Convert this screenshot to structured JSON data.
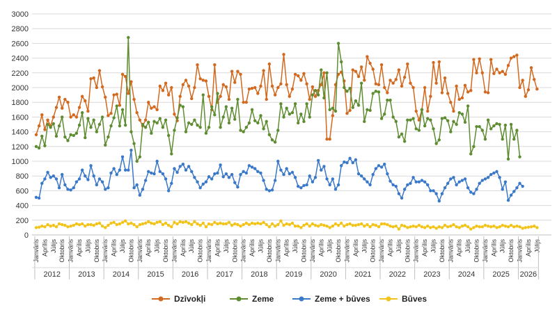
{
  "chart_data": {
    "type": "line",
    "ylim": [
      0,
      3000
    ],
    "y_ticks": [
      0,
      200,
      400,
      600,
      800,
      1000,
      1200,
      1400,
      1600,
      1800,
      2000,
      2200,
      2400,
      2600,
      2800,
      3000
    ],
    "grid": "horizontal",
    "legend_position": "bottom",
    "x_start": "2012-01",
    "month_tick_labels": [
      "Janvāris",
      "Aprīlis",
      "Jūlijs",
      "Oktobris"
    ],
    "years": [
      "2012",
      "2013",
      "2014",
      "2015",
      "2016",
      "2017",
      "2018",
      "2019",
      "2020",
      "2021",
      "2022",
      "2023",
      "2024",
      "2025",
      "2026"
    ],
    "series": [
      {
        "name": "Dzīvokļi",
        "color": "#d2691e",
        "values": [
          1360,
          1480,
          1630,
          1430,
          1560,
          1480,
          1600,
          1730,
          1870,
          1720,
          1840,
          1800,
          1600,
          1630,
          1600,
          1730,
          1880,
          1820,
          1680,
          2120,
          2130,
          2000,
          2230,
          2010,
          1870,
          1620,
          1650,
          1900,
          1910,
          1760,
          2180,
          2150,
          1920,
          2080,
          1840,
          1660,
          1560,
          1480,
          1560,
          1800,
          1720,
          1740,
          1700,
          2020,
          1960,
          2060,
          1900,
          2000,
          1640,
          1550,
          1880,
          2040,
          2100,
          2020,
          1850,
          2000,
          2310,
          2120,
          2100,
          2090,
          1880,
          1700,
          2310,
          1800,
          1880,
          2040,
          2010,
          1840,
          2220,
          2070,
          2220,
          2180,
          1800,
          1800,
          1980,
          1990,
          2000,
          1920,
          2020,
          2230,
          1840,
          2320,
          2020,
          1900,
          2000,
          2050,
          2450,
          2040,
          1880,
          1980,
          2180,
          2160,
          2100,
          2190,
          2050,
          1840,
          2010,
          1880,
          1960,
          2040,
          2200,
          1300,
          1300,
          1620,
          2040,
          2180,
          2210,
          2090,
          1650,
          1690,
          2240,
          2220,
          2150,
          2280,
          2100,
          2420,
          2330,
          2250,
          2050,
          2040,
          2310,
          2000,
          1930,
          2100,
          2060,
          2110,
          2240,
          2020,
          2140,
          2320,
          2060,
          2000,
          1680,
          1560,
          1700,
          2000,
          1680,
          1880,
          2340,
          2060,
          2350,
          1930,
          2130,
          1920,
          1800,
          1680,
          2020,
          1840,
          1860,
          2030,
          1940,
          1960,
          2380,
          2200,
          2390,
          2200,
          1940,
          1930,
          2380,
          2190,
          2250,
          2200,
          2220,
          2180,
          2300,
          2400,
          2420,
          2440,
          2000,
          2100,
          1880,
          1970,
          2270,
          2110,
          1980
        ]
      },
      {
        "name": "Zeme",
        "color": "#5e8c31",
        "values": [
          1200,
          1180,
          1340,
          1210,
          1500,
          1460,
          1510,
          1340,
          1480,
          1600,
          1330,
          1280,
          1360,
          1350,
          1380,
          1490,
          1660,
          1320,
          1580,
          1460,
          1560,
          1400,
          1500,
          1600,
          1220,
          1330,
          1480,
          1590,
          1750,
          1480,
          1700,
          1490,
          2680,
          1400,
          1240,
          1000,
          1060,
          1500,
          1460,
          1530,
          1380,
          1540,
          1520,
          1580,
          1460,
          1560,
          1350,
          1100,
          1420,
          1590,
          1760,
          1740,
          1400,
          1520,
          1500,
          1560,
          1490,
          1460,
          1900,
          1380,
          1460,
          1740,
          1630,
          1920,
          1460,
          1600,
          1740,
          1520,
          1720,
          1570,
          1840,
          1420,
          1400,
          1460,
          1520,
          1700,
          1550,
          1520,
          1620,
          1440,
          1540,
          1360,
          1290,
          1260,
          1420,
          1780,
          1600,
          1720,
          1640,
          1660,
          1780,
          1520,
          1640,
          1540,
          1780,
          1600,
          1900,
          1960,
          1900,
          2240,
          1860,
          2200,
          1700,
          1720,
          1680,
          2600,
          2350,
          2000,
          1950,
          1990,
          1730,
          1820,
          1760,
          2060,
          1540,
          1700,
          1690,
          1920,
          1950,
          1940,
          1580,
          1640,
          1830,
          1830,
          1600,
          1540,
          1330,
          1370,
          1270,
          1560,
          1560,
          1580,
          1440,
          1420,
          1700,
          1480,
          1580,
          1560,
          1440,
          1240,
          1290,
          1580,
          1590,
          1550,
          1400,
          1540,
          1500,
          1660,
          1640,
          1530,
          1750,
          1100,
          1200,
          1470,
          1470,
          1420,
          1300,
          1560,
          1440,
          1480,
          1510,
          1500,
          1300,
          1490,
          1030,
          1500,
          1300,
          1420,
          1060
        ]
      },
      {
        "name": "Zeme + būves",
        "color": "#3a78c9",
        "values": [
          510,
          500,
          700,
          760,
          850,
          780,
          800,
          760,
          640,
          820,
          680,
          620,
          610,
          640,
          720,
          760,
          880,
          800,
          750,
          940,
          800,
          680,
          760,
          720,
          620,
          640,
          840,
          900,
          820,
          880,
          1060,
          880,
          880,
          1150,
          640,
          680,
          540,
          620,
          740,
          860,
          840,
          830,
          1000,
          860,
          830,
          760,
          600,
          700,
          900,
          850,
          930,
          960,
          880,
          930,
          860,
          780,
          720,
          640,
          690,
          720,
          790,
          760,
          830,
          840,
          950,
          790,
          830,
          780,
          820,
          710,
          650,
          820,
          860,
          840,
          940,
          920,
          900,
          860,
          840,
          740,
          620,
          600,
          610,
          740,
          1000,
          880,
          820,
          900,
          830,
          850,
          780,
          660,
          640,
          670,
          680,
          800,
          720,
          780,
          1010,
          880,
          930,
          760,
          680,
          760,
          620,
          680,
          940,
          990,
          980,
          1040,
          980,
          1020,
          830,
          800,
          760,
          720,
          680,
          820,
          900,
          940,
          920,
          960,
          830,
          730,
          680,
          660,
          560,
          500,
          620,
          680,
          700,
          780,
          720,
          720,
          740,
          720,
          680,
          600,
          600,
          560,
          460,
          560,
          640,
          700,
          760,
          780,
          680,
          720,
          740,
          760,
          640,
          580,
          560,
          620,
          700,
          740,
          760,
          780,
          820,
          840,
          860,
          780,
          620,
          720,
          470,
          540,
          590,
          640,
          700,
          660
        ]
      },
      {
        "name": "Būves",
        "color": "#f2c318",
        "values": [
          100,
          105,
          120,
          110,
          140,
          120,
          130,
          110,
          150,
          140,
          130,
          110,
          120,
          130,
          150,
          140,
          150,
          120,
          140,
          140,
          130,
          150,
          160,
          120,
          100,
          130,
          160,
          170,
          140,
          150,
          170,
          190,
          150,
          160,
          140,
          110,
          140,
          150,
          160,
          180,
          160,
          150,
          170,
          180,
          140,
          160,
          130,
          110,
          170,
          150,
          180,
          170,
          180,
          160,
          140,
          180,
          150,
          130,
          160,
          110,
          150,
          140,
          170,
          150,
          160,
          150,
          150,
          170,
          130,
          150,
          140,
          120,
          140,
          160,
          140,
          160,
          150,
          160,
          150,
          170,
          140,
          110,
          150,
          120,
          140,
          190,
          130,
          150,
          140,
          160,
          120,
          120,
          100,
          130,
          150,
          120,
          150,
          130,
          120,
          140,
          130,
          120,
          100,
          120,
          150,
          130,
          160,
          120,
          140,
          150,
          130,
          130,
          140,
          150,
          120,
          140,
          110,
          140,
          130,
          110,
          150,
          150,
          140,
          120,
          110,
          120,
          80,
          130,
          120,
          100,
          110,
          120,
          110,
          130,
          110,
          100,
          120,
          100,
          110,
          90,
          110,
          100,
          130,
          110,
          120,
          140,
          110,
          100,
          120,
          130,
          110,
          80,
          100,
          120,
          110,
          110,
          130,
          120,
          110,
          120,
          100,
          110,
          130,
          120,
          110,
          130,
          110,
          120,
          110,
          90,
          100,
          105,
          110,
          120,
          100
        ]
      }
    ]
  }
}
